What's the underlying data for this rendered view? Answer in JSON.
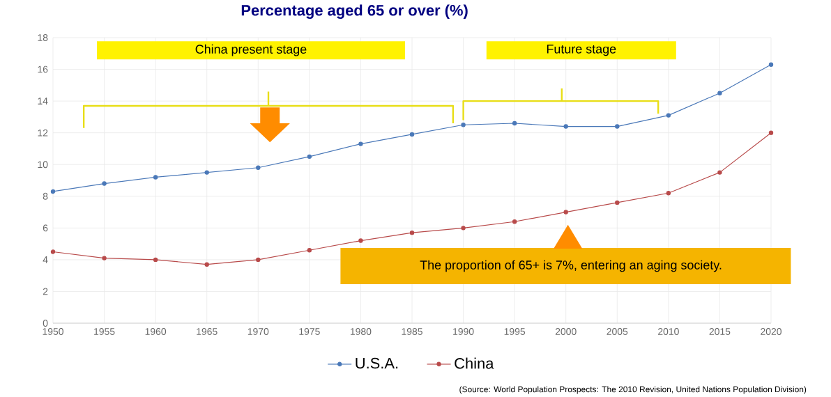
{
  "chart_data": {
    "type": "line",
    "title": "Percentage aged 65 or over (%)",
    "x": [
      1950,
      1955,
      1960,
      1965,
      1970,
      1975,
      1980,
      1985,
      1990,
      1995,
      2000,
      2005,
      2010,
      2015,
      2020
    ],
    "series": [
      {
        "name": "U.S.A.",
        "color": "#4a78b8",
        "values": [
          8.3,
          8.8,
          9.2,
          9.5,
          9.8,
          10.5,
          11.3,
          11.9,
          12.5,
          12.6,
          12.4,
          12.4,
          13.1,
          14.5,
          16.3
        ]
      },
      {
        "name": "China",
        "color": "#b84a4a",
        "values": [
          4.5,
          4.1,
          4.0,
          3.7,
          4.0,
          4.6,
          5.2,
          5.7,
          6.0,
          6.4,
          7.0,
          7.6,
          8.2,
          9.5,
          12.0
        ]
      }
    ],
    "xlim": [
      1950,
      2020
    ],
    "xticks": [
      1950,
      1955,
      1960,
      1965,
      1970,
      1975,
      1980,
      1985,
      1990,
      1995,
      2000,
      2005,
      2010,
      2015,
      2020
    ],
    "ylim": [
      0,
      18
    ],
    "yticks": [
      0,
      2,
      4,
      6,
      8,
      10,
      12,
      14,
      16,
      18
    ],
    "grid": true,
    "legend": "bottom",
    "marker": "circle",
    "line_style": "solid",
    "annotations": [
      "China present stage",
      "Future stage",
      "The proportion of 65+ is 7%, entering an aging society.",
      "(Source: World Population Prospects: The 2010 Revision, United Nations Population Division)"
    ]
  }
}
